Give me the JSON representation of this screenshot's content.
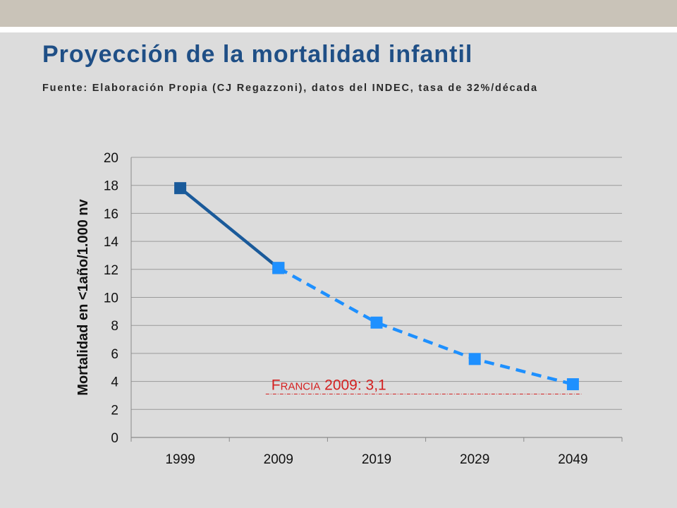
{
  "slide": {
    "title": "Proyección de la mortalidad infantil",
    "subtitle": "Fuente: Elaboración Propia (CJ Regazzoni), datos del INDEC, tasa de 32%/década"
  },
  "chart_data": {
    "type": "line",
    "categories": [
      "1999",
      "2009",
      "2019",
      "2029",
      "2049"
    ],
    "series": [
      {
        "style": "solid",
        "color": "#1a5a9a",
        "points": [
          [
            0,
            17.8
          ],
          [
            1,
            12.1
          ]
        ]
      },
      {
        "style": "dashed",
        "color": "#1e90ff",
        "points": [
          [
            1,
            12.1
          ],
          [
            2,
            8.2
          ],
          [
            3,
            5.6
          ],
          [
            4,
            3.8
          ]
        ]
      }
    ],
    "ylabel": "Mortalidad en <1año/1.000 nv",
    "xlabel": "",
    "ylim": [
      0,
      20
    ],
    "yticks": [
      0,
      2,
      4,
      6,
      8,
      10,
      12,
      14,
      16,
      18,
      20
    ],
    "grid": true,
    "reference_line": {
      "value": 3.1,
      "label_caps_initial": "F",
      "label_caps_rest": "RANCIA",
      "label_rest": " 2009: 3,1",
      "color": "#d42020",
      "x_from": 1,
      "x_to": 4
    }
  }
}
